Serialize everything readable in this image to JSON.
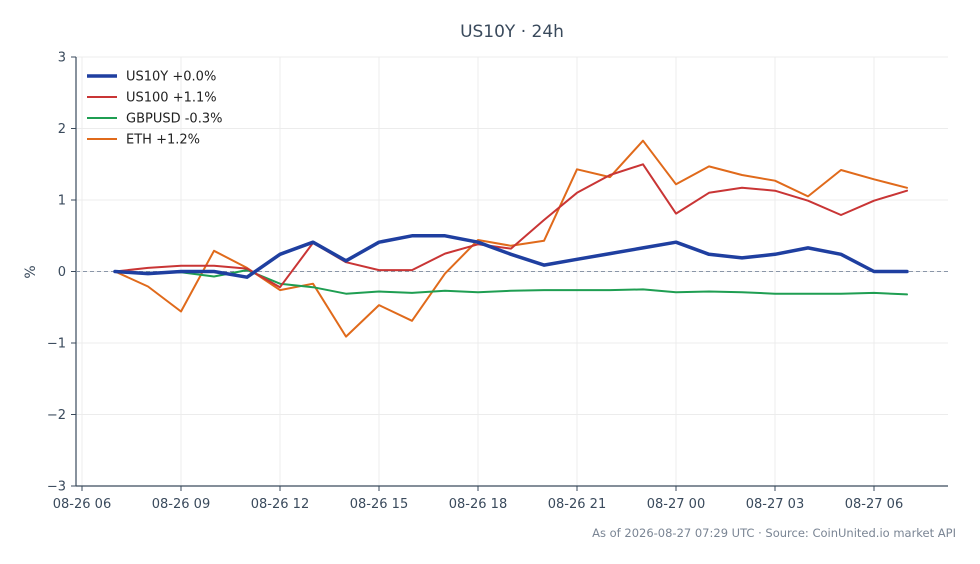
{
  "chart_data": {
    "type": "line",
    "title": "US10Y · 24h",
    "xlabel": "",
    "ylabel": "%",
    "x": [
      "08-26 07",
      "08-26 08",
      "08-26 09",
      "08-26 10",
      "08-26 11",
      "08-26 12",
      "08-26 13",
      "08-26 14",
      "08-26 15",
      "08-26 16",
      "08-26 17",
      "08-26 18",
      "08-26 19",
      "08-26 20",
      "08-26 21",
      "08-26 22",
      "08-26 23",
      "08-27 00",
      "08-27 01",
      "08-27 02",
      "08-27 03",
      "08-27 04",
      "08-27 05",
      "08-27 06",
      "08-27 07"
    ],
    "x_ticks": [
      "08-26 06",
      "08-26 09",
      "08-26 12",
      "08-26 15",
      "08-26 18",
      "08-26 21",
      "08-27 00",
      "08-27 03",
      "08-27 06"
    ],
    "y_ticks": [
      "3",
      "2",
      "1",
      "0",
      "−1",
      "−2",
      "−3"
    ],
    "ylim": [
      -3,
      3
    ],
    "grid": true,
    "zero_line": true,
    "legend_position": "top-left",
    "series": [
      {
        "name": "US10Y +0.0%",
        "color": "#1f3fa0",
        "values": [
          0.0,
          -0.03,
          0.0,
          0.0,
          -0.08,
          0.24,
          0.41,
          0.15,
          0.41,
          0.5,
          0.5,
          0.41,
          0.24,
          0.09,
          0.17,
          0.25,
          0.33,
          0.41,
          0.24,
          0.19,
          0.24,
          0.33,
          0.24,
          0.0,
          0.0
        ]
      },
      {
        "name": "US100 +1.1%",
        "color": "#c93535",
        "values": [
          0.0,
          0.05,
          0.08,
          0.08,
          0.04,
          -0.22,
          0.4,
          0.13,
          0.02,
          0.02,
          0.25,
          0.38,
          0.32,
          0.72,
          1.1,
          1.35,
          1.5,
          0.81,
          1.1,
          1.17,
          1.13,
          0.99,
          0.79,
          0.99,
          1.13
        ]
      },
      {
        "name": "GBPUSD -0.3%",
        "color": "#1f9e52",
        "values": [
          0.0,
          -0.02,
          -0.01,
          -0.07,
          0.02,
          -0.17,
          -0.22,
          -0.31,
          -0.28,
          -0.3,
          -0.27,
          -0.29,
          -0.27,
          -0.26,
          -0.26,
          -0.26,
          -0.25,
          -0.29,
          -0.28,
          -0.29,
          -0.31,
          -0.31,
          -0.31,
          -0.3,
          -0.32
        ]
      },
      {
        "name": "ETH +1.2%",
        "color": "#e06a1b",
        "values": [
          0.0,
          -0.21,
          -0.56,
          0.29,
          0.05,
          -0.26,
          -0.17,
          -0.91,
          -0.47,
          -0.69,
          -0.03,
          0.44,
          0.36,
          0.43,
          1.43,
          1.32,
          1.83,
          1.22,
          1.47,
          1.35,
          1.27,
          1.05,
          1.42,
          1.29,
          1.17
        ]
      }
    ]
  },
  "footer": "As of 2026-08-27 07:29 UTC · Source: CoinUnited.io market API"
}
